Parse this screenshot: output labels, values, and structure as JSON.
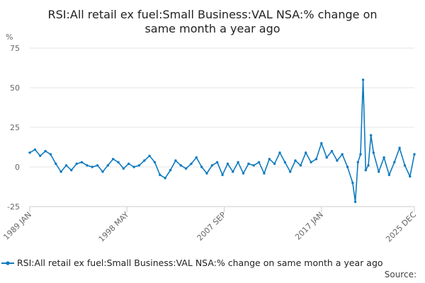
{
  "chart_data": {
    "type": "line",
    "title": "RSI:All retail ex fuel:Small Business:VAL NSA:% change on same month a year ago",
    "title_lines": [
      "RSI:All retail ex fuel:Small Business:VAL NSA:% change on",
      "same month a year ago"
    ],
    "ylabel": "%",
    "xlabel": "",
    "ylim": [
      -25,
      75
    ],
    "yticks": [
      -25,
      0,
      25,
      50,
      75
    ],
    "xlim": [
      1989.0,
      2025.92
    ],
    "xticks": [
      {
        "label": "1989 JAN",
        "x": 1989.0
      },
      {
        "label": "1998 MAY",
        "x": 1998.33
      },
      {
        "label": "2007 SEP",
        "x": 2007.67
      },
      {
        "label": "2017 JAN",
        "x": 2017.0
      },
      {
        "label": "2025 DEC",
        "x": 2025.92
      }
    ],
    "grid": true,
    "legend_position": "bottom",
    "series": [
      {
        "name": "RSI:All retail ex fuel:Small Business:VAL NSA:% change on same month a year ago",
        "color": "#0e7bc0",
        "x": [
          1989.0,
          1989.5,
          1990.0,
          1990.5,
          1991.0,
          1991.5,
          1992.0,
          1992.5,
          1993.0,
          1993.5,
          1994.0,
          1994.5,
          1995.0,
          1995.5,
          1996.0,
          1996.5,
          1997.0,
          1997.5,
          1998.0,
          1998.5,
          1999.0,
          1999.5,
          2000.0,
          2000.5,
          2001.0,
          2001.5,
          2002.0,
          2002.5,
          2003.0,
          2003.5,
          2004.0,
          2004.5,
          2005.0,
          2005.5,
          2006.0,
          2006.5,
          2007.0,
          2007.5,
          2008.0,
          2008.5,
          2009.0,
          2009.5,
          2010.0,
          2010.5,
          2011.0,
          2011.5,
          2012.0,
          2012.5,
          2013.0,
          2013.5,
          2014.0,
          2014.5,
          2015.0,
          2015.5,
          2016.0,
          2016.5,
          2017.0,
          2017.5,
          2018.0,
          2018.5,
          2019.0,
          2019.5,
          2020.0,
          2020.25,
          2020.5,
          2020.75,
          2021.0,
          2021.25,
          2021.5,
          2021.75,
          2022.0,
          2022.5,
          2023.0,
          2023.5,
          2024.0,
          2024.5,
          2025.0,
          2025.5,
          2025.92
        ],
        "values": [
          9,
          11,
          7,
          10,
          8,
          2,
          -3,
          1,
          -2,
          2,
          3,
          1,
          0,
          1,
          -3,
          1,
          5,
          3,
          -1,
          2,
          0,
          1,
          4,
          7,
          3,
          -5,
          -7,
          -2,
          4,
          1,
          -1,
          2,
          6,
          0,
          -4,
          1,
          3,
          -5,
          2,
          -3,
          3,
          -4,
          2,
          1,
          3,
          -4,
          5,
          2,
          9,
          3,
          -3,
          4,
          1,
          9,
          3,
          5,
          15,
          6,
          10,
          4,
          8,
          0,
          -10,
          -22,
          3,
          8,
          55,
          -2,
          1,
          20,
          9,
          -3,
          6,
          -5,
          3,
          12,
          1,
          -6,
          8
        ]
      }
    ]
  },
  "legend": {
    "label": "RSI:All retail ex fuel:Small Business:VAL NSA:% change on same month a year ago"
  },
  "source": {
    "label": "Source:"
  }
}
